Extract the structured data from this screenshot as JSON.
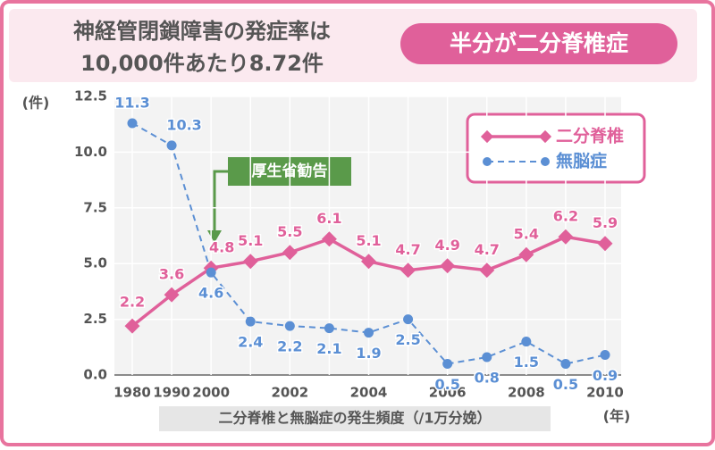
{
  "chart_data": {
    "type": "line",
    "title_lines": [
      "神経管閉鎖障害の発症率は",
      "10,000件あたり8.72件"
    ],
    "badge": "半分が二分脊椎症",
    "y_unit": "(件)",
    "x_unit": "(年)",
    "x_title": "二分脊椎と無脳症の発生頻度（/1万分娩）",
    "annotation": "厚生省勧告",
    "categories": [
      "1980",
      "1990",
      "2000",
      null,
      "2002",
      null,
      "2004",
      null,
      "2006",
      null,
      "2008",
      null,
      "2010"
    ],
    "series": [
      {
        "name": "二分脊椎",
        "color": "#e0609a",
        "dash": false,
        "values": [
          2.2,
          3.6,
          4.8,
          5.1,
          5.5,
          6.1,
          5.1,
          4.7,
          4.9,
          4.7,
          5.4,
          6.2,
          5.9
        ]
      },
      {
        "name": "無脳症",
        "color": "#5b8fd4",
        "dash": true,
        "values": [
          11.3,
          10.3,
          4.6,
          2.4,
          2.2,
          2.1,
          1.9,
          2.5,
          0.5,
          0.8,
          1.5,
          0.5,
          0.9
        ]
      }
    ],
    "ylim": [
      0,
      12.5
    ],
    "yticks": [
      {
        "value": 0,
        "label": "0.0"
      },
      2.5,
      {
        "value": 5,
        "label": "5.0"
      },
      7.5,
      {
        "value": 10,
        "label": "10.0"
      },
      12.5
    ],
    "grid": true
  }
}
